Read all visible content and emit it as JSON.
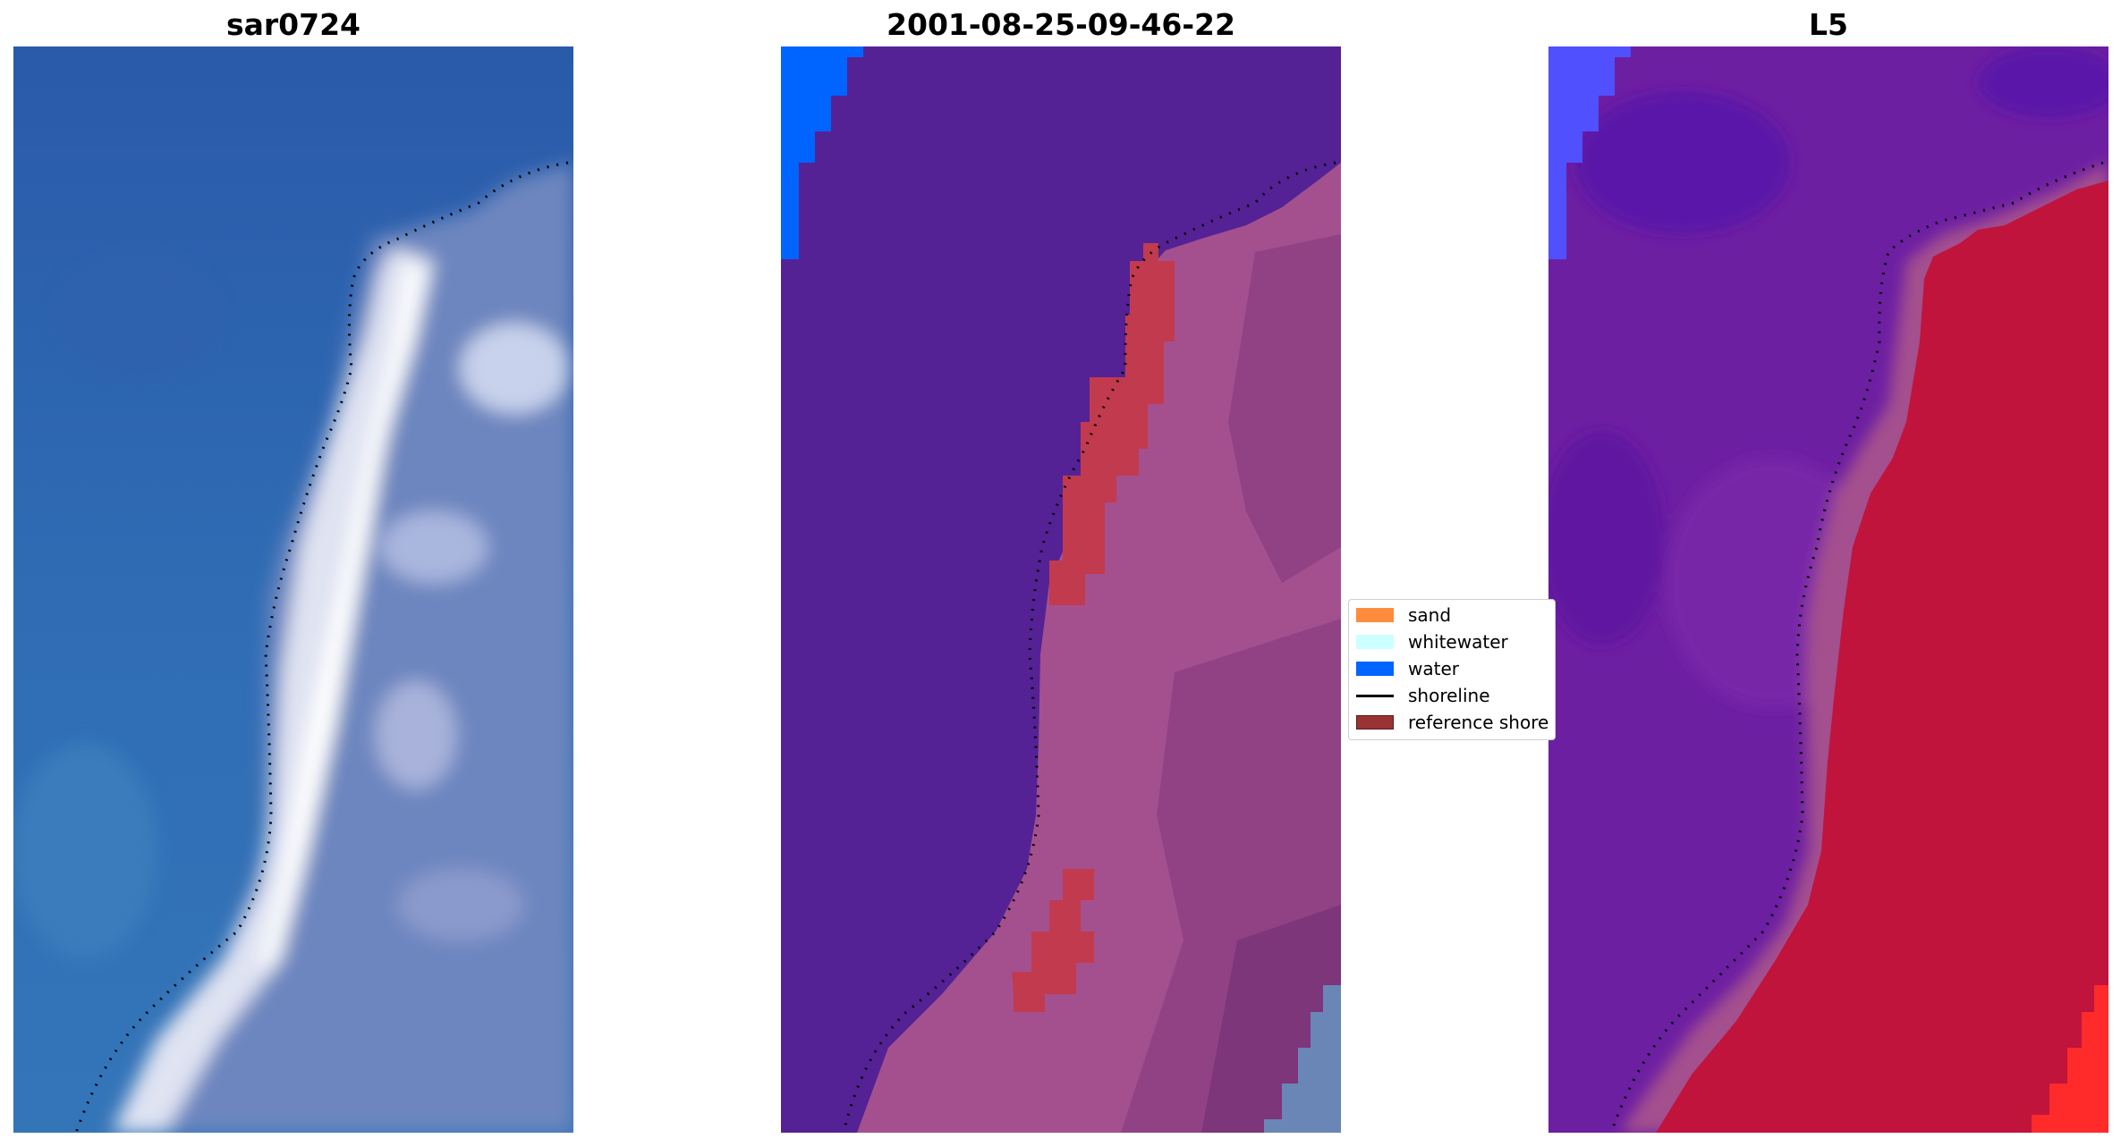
{
  "panels": [
    {
      "title": "sar0724"
    },
    {
      "title": "2001-08-25-09-46-22"
    },
    {
      "title": "L5"
    }
  ],
  "legend": {
    "items": [
      {
        "label": "sand",
        "color": "#ff8c3c",
        "type": "patch"
      },
      {
        "label": "whitewater",
        "color": "#ccffff",
        "type": "patch"
      },
      {
        "label": "water",
        "color": "#0064ff",
        "type": "patch"
      },
      {
        "label": "shoreline",
        "color": "#000000",
        "type": "line"
      },
      {
        "label": "reference shore",
        "color": "#993333",
        "type": "patch"
      }
    ]
  },
  "colors": {
    "rgb_water": "#3266b0",
    "rgb_surf": "#e6e8f2",
    "rgb_land": "#6f86bf",
    "class_background": "#542295",
    "class_water_patch": "#0064ff",
    "class_land": "#a4508e",
    "class_reference": "#c23a4e",
    "class_grey": "#6a86b6",
    "l5_sea": "#6d1fa2",
    "l5_water_patch": "#5050ff",
    "l5_land": "#c0143c",
    "l5_bright": "#ff2a2a"
  }
}
